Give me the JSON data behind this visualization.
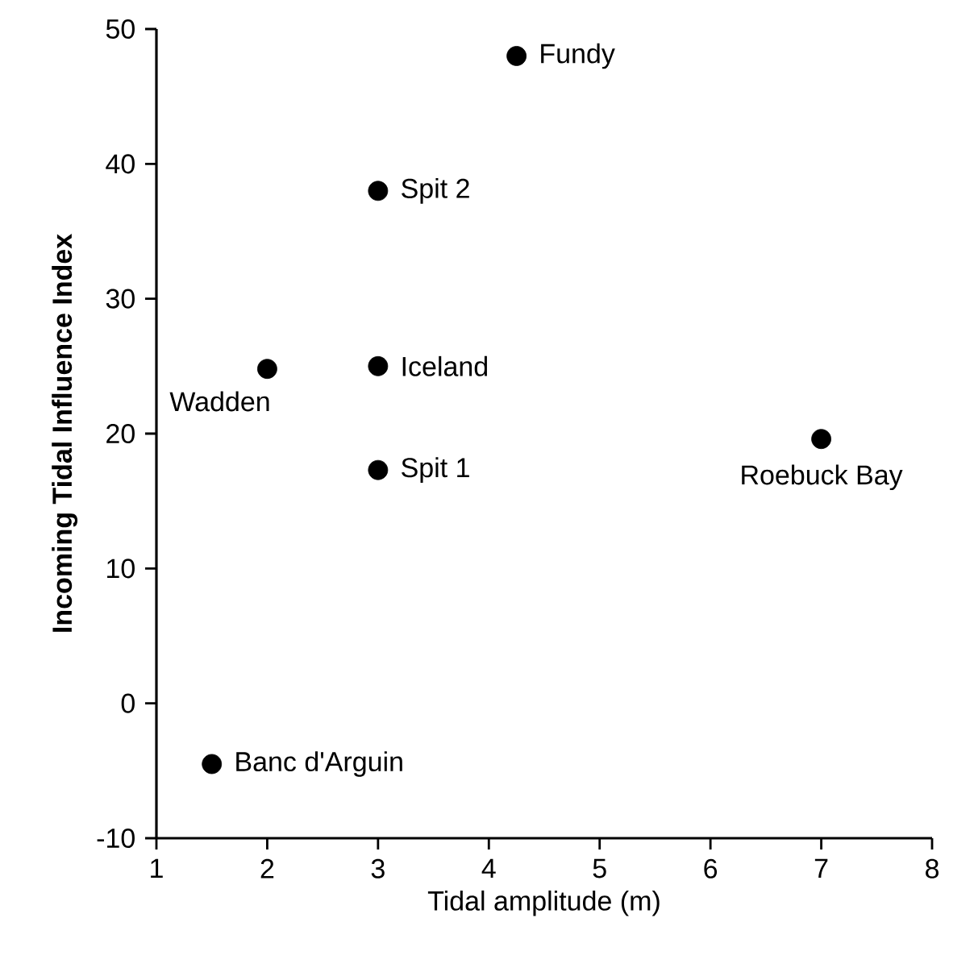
{
  "chart_data": {
    "type": "scatter",
    "xlabel": "Tidal amplitude (m)",
    "ylabel": "Incoming Tidal Influence Index",
    "x": [
      4.25,
      3,
      3,
      2,
      3,
      7,
      1.5
    ],
    "values": [
      48,
      38,
      25,
      24.8,
      17.3,
      19.6,
      -4.5
    ],
    "color": "#000000",
    "marker": "circle",
    "grid": false,
    "xlim": [
      1,
      8
    ],
    "ylim": [
      -10,
      50
    ],
    "xticks": [
      1,
      2,
      3,
      4,
      5,
      6,
      7,
      8
    ],
    "yticks": [
      -10,
      0,
      10,
      20,
      30,
      40,
      50
    ],
    "annotations": [
      {
        "text": "Fundy",
        "x": 4.25,
        "y": 48
      },
      {
        "text": "Spit 2",
        "x": 3,
        "y": 38
      },
      {
        "text": "Iceland",
        "x": 3,
        "y": 25
      },
      {
        "text": "Wadden",
        "x": 2,
        "y": 24.8
      },
      {
        "text": "Spit 1",
        "x": 3,
        "y": 17.3
      },
      {
        "text": "Roebuck Bay",
        "x": 7,
        "y": 19.6
      },
      {
        "text": "Banc d'Arguin",
        "x": 1.5,
        "y": -4.5
      }
    ]
  }
}
